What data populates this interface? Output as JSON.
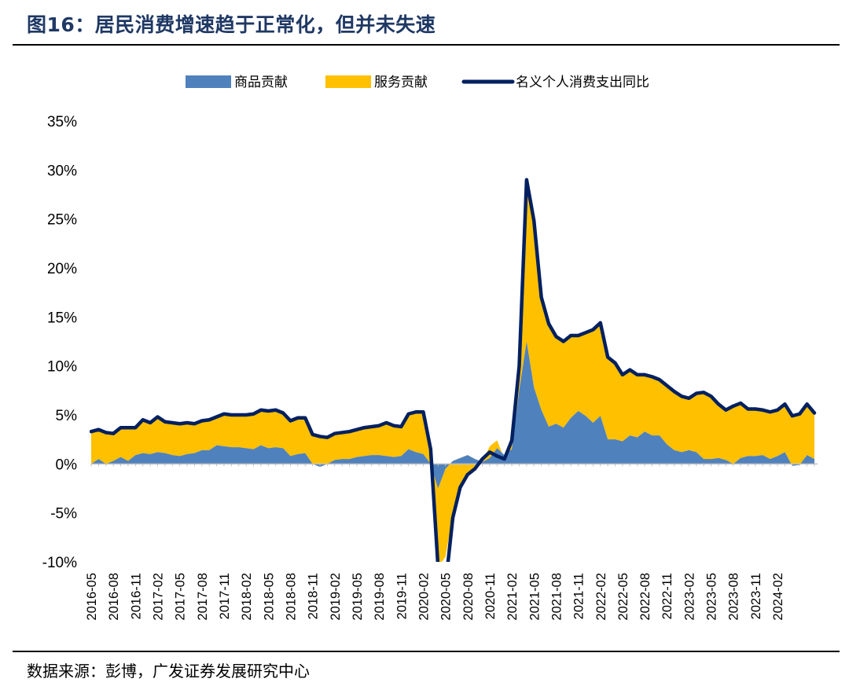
{
  "figure": {
    "title": "图16：居民消费增速趋于正常化，但并未失速",
    "source": "数据来源：彭博，广发证券发展研究中心"
  },
  "chart_data": {
    "type": "area",
    "title": "",
    "xlabel": "",
    "ylabel": "",
    "ylim": [
      -10,
      35
    ],
    "y_ticks": [
      "35%",
      "30%",
      "25%",
      "20%",
      "15%",
      "10%",
      "5%",
      "0%",
      "-5%",
      "-10%"
    ],
    "x_tick_labels": [
      "2016-05",
      "2016-08",
      "2016-11",
      "2017-02",
      "2017-05",
      "2017-08",
      "2017-11",
      "2018-02",
      "2018-05",
      "2018-08",
      "2018-11",
      "2019-02",
      "2019-05",
      "2019-08",
      "2019-11",
      "2020-02",
      "2020-05",
      "2020-08",
      "2020-11",
      "2021-02",
      "2021-05",
      "2021-08",
      "2021-11",
      "2022-02",
      "2022-05",
      "2022-08",
      "2022-11",
      "2023-02",
      "2023-05",
      "2023-08",
      "2023-11",
      "2024-02"
    ],
    "x_start": "2016-05",
    "legend": {
      "placement": "top-center"
    },
    "grid": false,
    "colors": {
      "goods": "#4f81bd",
      "services": "#ffc000",
      "total": "#002060"
    },
    "series": [
      {
        "name": "商品贡献",
        "kind": "area",
        "values": [
          0.0,
          0.5,
          0.0,
          0.3,
          0.7,
          0.3,
          0.9,
          1.1,
          1.0,
          1.2,
          1.1,
          0.9,
          0.8,
          1.0,
          1.1,
          1.4,
          1.4,
          1.9,
          1.8,
          1.7,
          1.7,
          1.6,
          1.5,
          1.9,
          1.6,
          1.7,
          1.6,
          0.8,
          1.0,
          1.1,
          0.0,
          -0.3,
          0.0,
          0.4,
          0.5,
          0.5,
          0.7,
          0.8,
          0.9,
          0.9,
          0.8,
          0.7,
          0.8,
          1.5,
          1.2,
          1.0,
          0.0,
          -2.5,
          -0.5,
          0.3,
          0.6,
          0.9,
          0.5,
          0.2,
          0.6,
          1.6,
          0.9,
          1.5,
          7.5,
          12.5,
          7.8,
          5.5,
          3.8,
          4.1,
          3.7,
          4.7,
          5.4,
          4.9,
          4.2,
          4.9,
          2.5,
          2.5,
          2.3,
          2.9,
          2.7,
          3.3,
          2.9,
          2.9,
          2.0,
          1.4,
          1.2,
          1.4,
          1.2,
          0.5,
          0.5,
          0.6,
          0.4,
          0.0,
          0.6,
          0.8,
          0.8,
          0.9,
          0.5,
          0.8,
          1.2,
          -0.2,
          -0.1,
          0.9,
          0.5
        ]
      },
      {
        "name": "服务贡献",
        "kind": "area",
        "values": [
          3.3,
          3.0,
          3.2,
          2.8,
          3.0,
          3.4,
          2.8,
          3.4,
          3.2,
          3.6,
          3.2,
          3.3,
          3.3,
          3.2,
          3.0,
          3.0,
          3.1,
          2.9,
          3.3,
          3.3,
          3.3,
          3.4,
          3.6,
          3.6,
          3.8,
          3.8,
          3.6,
          3.6,
          3.7,
          3.6,
          3.0,
          3.1,
          2.7,
          2.7,
          2.7,
          2.8,
          2.8,
          2.9,
          2.9,
          3.0,
          3.4,
          3.2,
          3.0,
          3.6,
          4.1,
          4.3,
          1.5,
          -8.0,
          -9.0,
          -5.5,
          -3.0,
          -2.0,
          -1.0,
          0.0,
          1.2,
          0.8,
          -0.4,
          0.9,
          2.5,
          16.5,
          17.0,
          11.5,
          10.5,
          8.9,
          8.8,
          8.4,
          7.7,
          8.5,
          9.5,
          9.5,
          8.4,
          7.8,
          6.8,
          6.7,
          6.4,
          5.8,
          6.0,
          5.7,
          6.0,
          6.0,
          5.7,
          5.3,
          6.0,
          6.8,
          6.4,
          5.5,
          5.1,
          5.9,
          5.6,
          4.8,
          4.8,
          4.6,
          4.8,
          4.7,
          4.9,
          5.1,
          5.2,
          5.2,
          4.7
        ]
      },
      {
        "name": "名义个人消费支出同比",
        "kind": "line",
        "values": [
          3.3,
          3.5,
          3.2,
          3.1,
          3.7,
          3.7,
          3.7,
          4.5,
          4.2,
          4.8,
          4.3,
          4.2,
          4.1,
          4.2,
          4.1,
          4.4,
          4.5,
          4.8,
          5.1,
          5.0,
          5.0,
          5.0,
          5.1,
          5.5,
          5.4,
          5.5,
          5.2,
          4.4,
          4.7,
          4.7,
          3.0,
          2.8,
          2.7,
          3.1,
          3.2,
          3.3,
          3.5,
          3.7,
          3.8,
          3.9,
          4.2,
          3.9,
          3.8,
          5.1,
          5.3,
          5.3,
          1.5,
          -10.5,
          -12.5,
          -5.5,
          -2.4,
          -1.1,
          -0.5,
          0.5,
          1.2,
          0.8,
          0.5,
          2.4,
          10.0,
          29.0,
          24.8,
          17.0,
          14.3,
          13.0,
          12.5,
          13.1,
          13.1,
          13.4,
          13.7,
          14.4,
          10.9,
          10.3,
          9.1,
          9.6,
          9.1,
          9.1,
          8.9,
          8.6,
          8.0,
          7.4,
          6.9,
          6.7,
          7.2,
          7.3,
          6.9,
          6.1,
          5.5,
          5.9,
          6.2,
          5.6,
          5.6,
          5.5,
          5.3,
          5.5,
          6.1,
          4.9,
          5.1,
          6.1,
          5.2
        ]
      }
    ]
  }
}
